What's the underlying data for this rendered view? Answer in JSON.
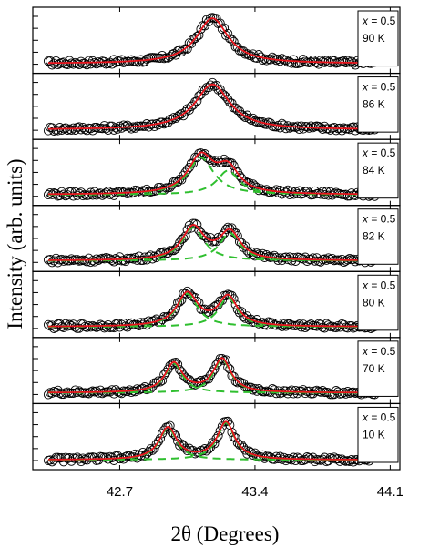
{
  "chart_data": {
    "type": "scatter",
    "xlabel": "2θ (Degrees)",
    "ylabel": "Intensity (arb. units)",
    "xlim": [
      42.25,
      44.15
    ],
    "xticks": [
      42.7,
      43.4,
      44.1
    ],
    "xtick_labels": [
      "42.7",
      "43.4",
      "44.1"
    ],
    "composition_label": "x",
    "composition_value": "= 0.5",
    "colors": {
      "data": "#000000",
      "fit": "#e8141c",
      "component": "#2fbf2f"
    },
    "panels": [
      {
        "temperature": "90 K",
        "baseline": 0.08,
        "peaks": [
          {
            "center": 43.18,
            "height": 0.85,
            "width": 0.2
          }
        ]
      },
      {
        "temperature": "86 K",
        "baseline": 0.08,
        "peaks": [
          {
            "center": 43.18,
            "height": 0.85,
            "width": 0.22
          }
        ]
      },
      {
        "temperature": "84 K",
        "baseline": 0.1,
        "peaks": [
          {
            "center": 43.12,
            "height": 0.7,
            "width": 0.16
          },
          {
            "center": 43.26,
            "height": 0.45,
            "width": 0.14
          }
        ]
      },
      {
        "temperature": "82 K",
        "baseline": 0.1,
        "peaks": [
          {
            "center": 43.08,
            "height": 0.62,
            "width": 0.14
          },
          {
            "center": 43.27,
            "height": 0.52,
            "width": 0.13
          }
        ]
      },
      {
        "temperature": "80 K",
        "baseline": 0.1,
        "peaks": [
          {
            "center": 43.05,
            "height": 0.62,
            "width": 0.13
          },
          {
            "center": 43.26,
            "height": 0.55,
            "width": 0.12
          }
        ]
      },
      {
        "temperature": "70 K",
        "baseline": 0.1,
        "peaks": [
          {
            "center": 42.98,
            "height": 0.55,
            "width": 0.11
          },
          {
            "center": 43.23,
            "height": 0.63,
            "width": 0.11
          }
        ]
      },
      {
        "temperature": "10 K",
        "baseline": 0.08,
        "peaks": [
          {
            "center": 42.95,
            "height": 0.6,
            "width": 0.11
          },
          {
            "center": 43.25,
            "height": 0.7,
            "width": 0.11
          }
        ]
      }
    ]
  }
}
